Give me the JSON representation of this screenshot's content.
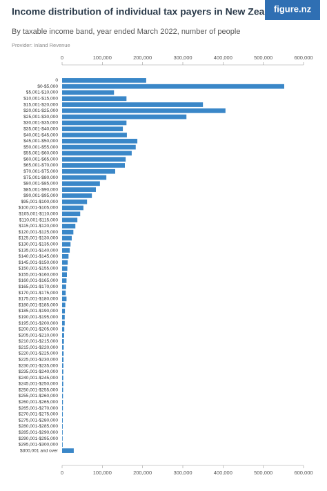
{
  "brand": "figure.nz",
  "chart_data": {
    "type": "bar",
    "orientation": "horizontal",
    "title": "Income distribution of individual tax payers in New Zealand",
    "subtitle": "By taxable income band, year ended March 2022, number of people",
    "source": "Provider: Inland Revenue",
    "color": "#3a87c8",
    "xlim": [
      0,
      600000
    ],
    "xticks": [
      0,
      {
        "value": 100000,
        "label": "100,000"
      },
      {
        "value": 200000,
        "label": "200,000"
      },
      {
        "value": 300000,
        "label": "300,000"
      },
      {
        "value": 400000,
        "label": "400,000"
      },
      {
        "value": 500000,
        "label": "500,000"
      },
      {
        "value": 600000,
        "label": "600,000"
      }
    ],
    "categories": [
      "0",
      "$0-$5,000",
      "$5,001-$10,000",
      "$10,001-$15,000",
      "$15,001-$20,000",
      "$20,001-$25,000",
      "$25,001-$30,000",
      "$30,001-$35,000",
      "$35,001-$40,000",
      "$40,001-$45,000",
      "$45,001-$50,000",
      "$50,001-$55,000",
      "$55,001-$60,000",
      "$60,001-$65,000",
      "$65,001-$70,000",
      "$70,001-$75,000",
      "$75,001-$80,000",
      "$80,001-$85,000",
      "$85,001-$90,000",
      "$90,001-$95,000",
      "$95,001-$100,000",
      "$100,001-$105,000",
      "$105,001-$110,000",
      "$110,001-$115,000",
      "$115,001-$120,000",
      "$120,001-$125,000",
      "$125,001-$130,000",
      "$130,001-$135,000",
      "$135,001-$140,000",
      "$140,001-$145,000",
      "$145,001-$150,000",
      "$150,001-$155,000",
      "$155,001-$160,000",
      "$160,001-$165,000",
      "$165,001-$170,000",
      "$170,001-$175,000",
      "$175,001-$180,000",
      "$180,001-$185,000",
      "$185,001-$190,000",
      "$190,001-$195,000",
      "$195,001-$200,000",
      "$200,001-$205,000",
      "$205,001-$210,000",
      "$210,001-$215,000",
      "$215,001-$220,000",
      "$220,001-$225,000",
      "$225,001-$230,000",
      "$230,001-$235,000",
      "$235,001-$240,000",
      "$240,001-$245,000",
      "$245,001-$250,000",
      "$250,001-$255,000",
      "$255,001-$260,000",
      "$260,001-$265,000",
      "$265,001-$270,000",
      "$270,001-$275,000",
      "$275,001-$280,000",
      "$280,001-$285,000",
      "$285,001-$290,000",
      "$290,001-$295,000",
      "$295,001-$300,000",
      "$300,001 and over"
    ],
    "values": [
      209000,
      552000,
      129000,
      160000,
      350000,
      406000,
      309000,
      160000,
      151000,
      161000,
      187000,
      183000,
      173000,
      158000,
      156000,
      132000,
      110000,
      94000,
      84000,
      74000,
      62000,
      53000,
      45000,
      38000,
      33000,
      28000,
      24000,
      21000,
      19000,
      16000,
      14000,
      13000,
      12000,
      11000,
      10000,
      9000,
      11000,
      8000,
      7000,
      6500,
      6500,
      5500,
      5000,
      4500,
      4000,
      3800,
      3500,
      3200,
      3000,
      2800,
      2900,
      2500,
      2200,
      2100,
      2000,
      1800,
      1700,
      1600,
      1500,
      1400,
      1500,
      29000
    ]
  }
}
